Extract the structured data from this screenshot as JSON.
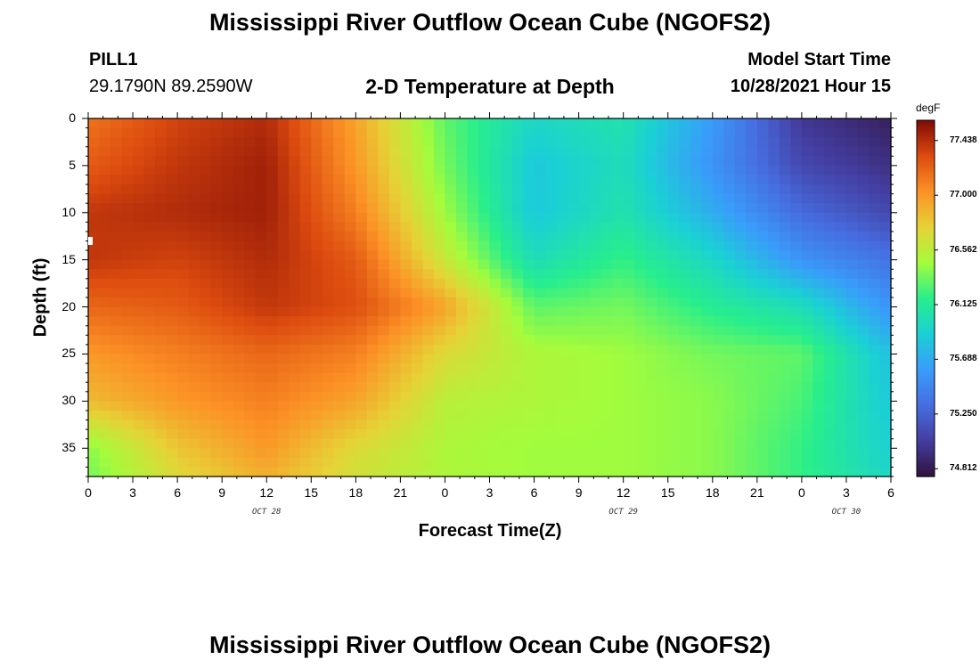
{
  "header": {
    "title": "Mississippi River Outflow Ocean Cube (NGOFS2)",
    "station": "PILL1",
    "coords": "29.1790N  89.2590W",
    "subtitle": "2-D Temperature at Depth",
    "model_start_label": "Model Start Time",
    "model_start_value": "10/28/2021 Hour 15"
  },
  "footer": {
    "title": "Mississippi River Outflow Ocean Cube (NGOFS2)"
  },
  "chart_data": {
    "type": "heatmap",
    "xlabel": "Forecast Time(Z)",
    "ylabel": "Depth (ft)",
    "x_tick_labels": [
      "0",
      "3",
      "6",
      "9",
      "12",
      "15",
      "18",
      "21",
      "0",
      "3",
      "6",
      "9",
      "12",
      "15",
      "18",
      "21",
      "0",
      "3",
      "6"
    ],
    "x_hours_range": [
      0,
      54
    ],
    "date_labels": [
      {
        "text": "OCT 28",
        "hour": 12
      },
      {
        "text": "OCT 29",
        "hour": 36
      },
      {
        "text": "OCT 30",
        "hour": 51
      }
    ],
    "y_tick_labels": [
      "0",
      "5",
      "10",
      "15",
      "20",
      "25",
      "30",
      "35"
    ],
    "y_range": [
      0,
      38
    ],
    "colorbar": {
      "unit": "degF",
      "min": 74.75,
      "max": 77.6,
      "tick_labels": [
        "77.438",
        "77.000",
        "76.562",
        "76.125",
        "75.688",
        "75.250",
        "74.812"
      ],
      "tick_values": [
        77.438,
        77.0,
        76.562,
        76.125,
        75.688,
        75.25,
        74.812
      ]
    },
    "grid_time_hours": [
      0,
      6,
      12,
      18,
      24,
      30,
      36,
      42,
      48,
      54
    ],
    "grid_depth_ft": [
      0,
      5,
      10,
      15,
      20,
      25,
      30,
      35,
      38
    ],
    "values": [
      [
        77.15,
        77.35,
        77.45,
        76.95,
        76.3,
        75.95,
        76.05,
        75.6,
        75.0,
        74.85
      ],
      [
        77.25,
        77.4,
        77.5,
        77.0,
        76.35,
        75.85,
        76.0,
        75.55,
        75.1,
        74.95
      ],
      [
        77.4,
        77.45,
        77.5,
        77.1,
        76.45,
        75.85,
        76.05,
        75.7,
        75.3,
        75.1
      ],
      [
        77.4,
        77.35,
        77.45,
        77.25,
        76.6,
        76.0,
        76.2,
        75.95,
        75.55,
        75.35
      ],
      [
        77.2,
        77.25,
        77.4,
        77.3,
        76.95,
        76.3,
        76.35,
        76.15,
        76.0,
        75.55
      ],
      [
        77.0,
        77.1,
        77.2,
        77.1,
        76.7,
        76.5,
        76.45,
        76.35,
        76.3,
        75.8
      ],
      [
        76.85,
        77.0,
        77.1,
        76.95,
        76.55,
        76.5,
        76.45,
        76.4,
        76.25,
        75.85
      ],
      [
        76.4,
        76.8,
        77.0,
        76.7,
        76.5,
        76.45,
        76.45,
        76.4,
        76.2,
        75.9
      ],
      [
        76.35,
        76.7,
        76.9,
        76.65,
        76.5,
        76.45,
        76.45,
        76.4,
        76.2,
        75.95
      ]
    ]
  }
}
